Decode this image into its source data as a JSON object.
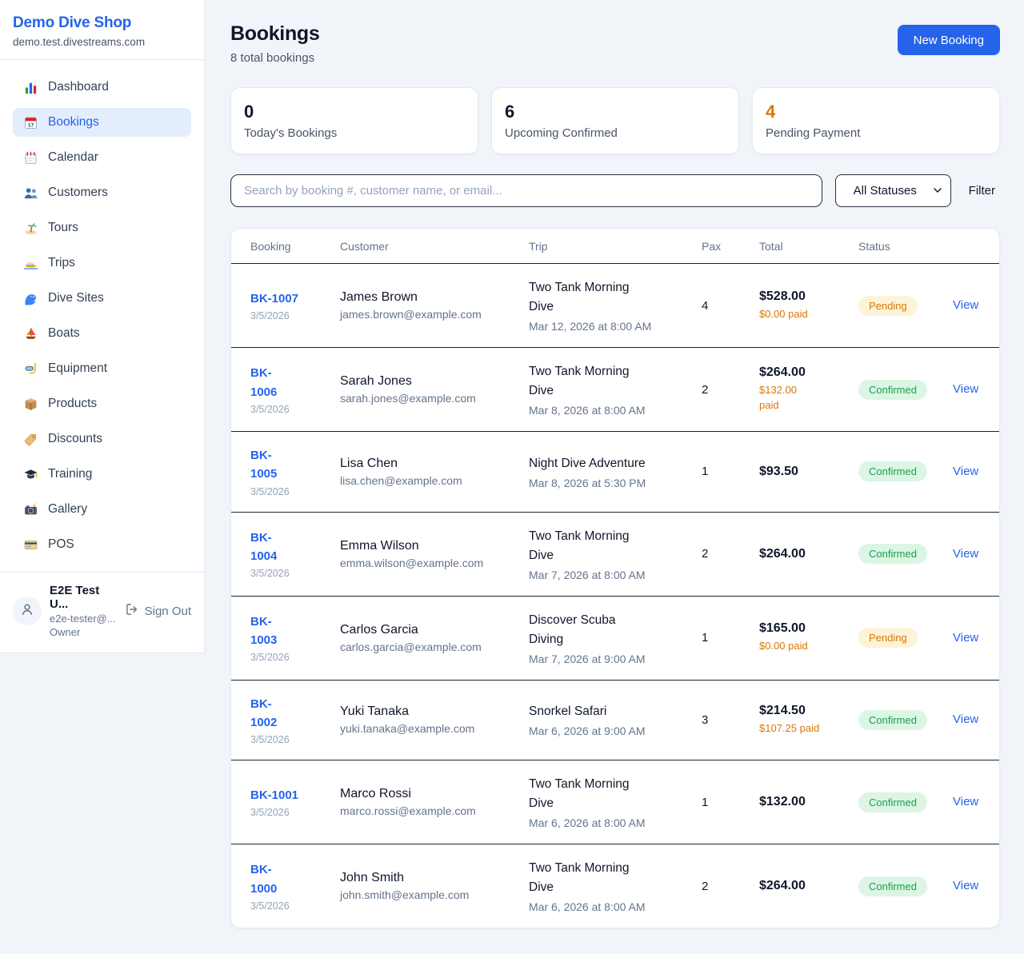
{
  "sidebar": {
    "shop_name": "Demo Dive Shop",
    "domain": "demo.test.divestreams.com",
    "items": [
      {
        "label": "Dashboard",
        "icon": "bar-chart-icon",
        "active": false
      },
      {
        "label": "Bookings",
        "icon": "calendar-icon",
        "active": true
      },
      {
        "label": "Calendar",
        "icon": "spiral-calendar-icon",
        "active": false
      },
      {
        "label": "Customers",
        "icon": "users-icon",
        "active": false
      },
      {
        "label": "Tours",
        "icon": "island-icon",
        "active": false
      },
      {
        "label": "Trips",
        "icon": "speedboat-icon",
        "active": false
      },
      {
        "label": "Dive Sites",
        "icon": "wave-icon",
        "active": false
      },
      {
        "label": "Boats",
        "icon": "sailboat-icon",
        "active": false
      },
      {
        "label": "Equipment",
        "icon": "diving-mask-icon",
        "active": false
      },
      {
        "label": "Products",
        "icon": "package-icon",
        "active": false
      },
      {
        "label": "Discounts",
        "icon": "label-tag-icon",
        "active": false
      },
      {
        "label": "Training",
        "icon": "graduation-cap-icon",
        "active": false
      },
      {
        "label": "Gallery",
        "icon": "camera-icon",
        "active": false
      },
      {
        "label": "POS",
        "icon": "credit-card-icon",
        "active": false
      }
    ],
    "user": {
      "name": "E2E Test U...",
      "email": "e2e-tester@...",
      "role": "Owner",
      "sign_out_label": "Sign Out"
    }
  },
  "header": {
    "title": "Bookings",
    "subtitle": "8 total bookings",
    "new_booking_label": "New Booking"
  },
  "stats": [
    {
      "value": "0",
      "label": "Today's Bookings",
      "color": "#0f172a"
    },
    {
      "value": "6",
      "label": "Upcoming Confirmed",
      "color": "#0f172a"
    },
    {
      "value": "4",
      "label": "Pending Payment",
      "color": "#d97706"
    }
  ],
  "filters": {
    "search_placeholder": "Search by booking #, customer name, or email...",
    "status_selected": "All Statuses",
    "filter_label": "Filter"
  },
  "table": {
    "columns": [
      "Booking",
      "Customer",
      "Trip",
      "Pax",
      "Total",
      "Status"
    ],
    "view_label": "View",
    "rows": [
      {
        "number": "BK-1007",
        "date": "3/5/2026",
        "customer": "James Brown",
        "email": "james.brown@example.com",
        "trip": "Two Tank Morning\nDive",
        "datetime": "Mar 12, 2026 at 8:00 AM",
        "pax": "4",
        "total": "$528.00",
        "paid": "$0.00 paid",
        "status": "Pending"
      },
      {
        "number": "BK-\n1006",
        "date": "3/5/2026",
        "customer": "Sarah Jones",
        "email": "sarah.jones@example.com",
        "trip": "Two Tank Morning\nDive",
        "datetime": "Mar 8, 2026 at 8:00 AM",
        "pax": "2",
        "total": "$264.00",
        "paid": "$132.00\npaid",
        "status": "Confirmed"
      },
      {
        "number": "BK-\n1005",
        "date": "3/5/2026",
        "customer": "Lisa Chen",
        "email": "lisa.chen@example.com",
        "trip": "Night Dive Adventure",
        "datetime": "Mar 8, 2026 at 5:30 PM",
        "pax": "1",
        "total": "$93.50",
        "paid": "",
        "status": "Confirmed"
      },
      {
        "number": "BK-\n1004",
        "date": "3/5/2026",
        "customer": "Emma Wilson",
        "email": "emma.wilson@example.com",
        "trip": "Two Tank Morning\nDive",
        "datetime": "Mar 7, 2026 at 8:00 AM",
        "pax": "2",
        "total": "$264.00",
        "paid": "",
        "status": "Confirmed"
      },
      {
        "number": "BK-\n1003",
        "date": "3/5/2026",
        "customer": "Carlos Garcia",
        "email": "carlos.garcia@example.com",
        "trip": "Discover Scuba\nDiving",
        "datetime": "Mar 7, 2026 at 9:00 AM",
        "pax": "1",
        "total": "$165.00",
        "paid": "$0.00 paid",
        "status": "Pending"
      },
      {
        "number": "BK-\n1002",
        "date": "3/5/2026",
        "customer": "Yuki Tanaka",
        "email": "yuki.tanaka@example.com",
        "trip": "Snorkel Safari",
        "datetime": "Mar 6, 2026 at 9:00 AM",
        "pax": "3",
        "total": "$214.50",
        "paid": "$107.25 paid",
        "status": "Confirmed"
      },
      {
        "number": "BK-1001",
        "date": "3/5/2026",
        "customer": "Marco Rossi",
        "email": "marco.rossi@example.com",
        "trip": "Two Tank Morning\nDive",
        "datetime": "Mar 6, 2026 at 8:00 AM",
        "pax": "1",
        "total": "$132.00",
        "paid": "",
        "status": "Confirmed"
      },
      {
        "number": "BK-\n1000",
        "date": "3/5/2026",
        "customer": "John Smith",
        "email": "john.smith@example.com",
        "trip": "Two Tank Morning\nDive",
        "datetime": "Mar 6, 2026 at 8:00 AM",
        "pax": "2",
        "total": "$264.00",
        "paid": "",
        "status": "Confirmed"
      }
    ]
  },
  "colors": {
    "accent_blue": "#2563eb",
    "pending_text": "#d97706",
    "pending_bg": "#fcf3d9",
    "confirmed_text": "#16a34a",
    "confirmed_bg": "#dcf5e4"
  }
}
